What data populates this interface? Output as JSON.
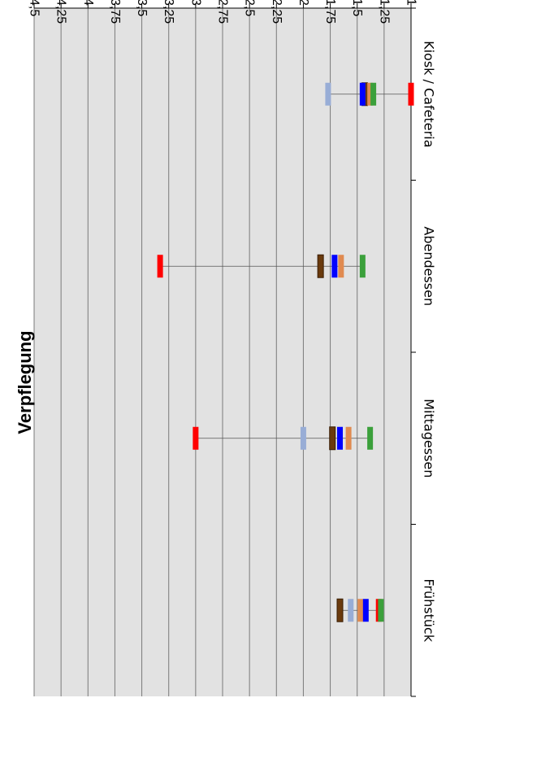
{
  "chart_data": {
    "type": "scatter",
    "title": "Verpflegung",
    "categories": [
      "Frühstück",
      "Mittagessen",
      "Abendessen",
      "Kiosk / Cafeteria"
    ],
    "ylim": [
      1,
      4.5
    ],
    "y_ticks": [
      "1",
      "1,25",
      "1,5",
      "1,75",
      "2",
      "2,25",
      "2,5",
      "2,75",
      "3",
      "3,25",
      "3,5",
      "3,75",
      "4",
      "4,25",
      "4,5"
    ],
    "grid": true,
    "plot_background": "#E2E2E2",
    "series": [
      {
        "color": "#FF0000",
        "values": [
          1.3,
          3.0,
          3.33,
          1.0
        ]
      },
      {
        "color": "#98ADD6",
        "values": [
          1.56,
          2.0,
          1.84,
          1.77
        ]
      },
      {
        "color": "#6A3A0D",
        "values": [
          1.66,
          1.73,
          1.84,
          1.43
        ]
      },
      {
        "color": "#E08A50",
        "values": [
          1.47,
          1.58,
          1.65,
          1.38
        ]
      },
      {
        "color": "#0000FF",
        "values": [
          1.42,
          1.66,
          1.71,
          1.45
        ]
      },
      {
        "color": "#3BA03B",
        "values": [
          1.28,
          1.38,
          1.45,
          1.35
        ]
      }
    ]
  }
}
